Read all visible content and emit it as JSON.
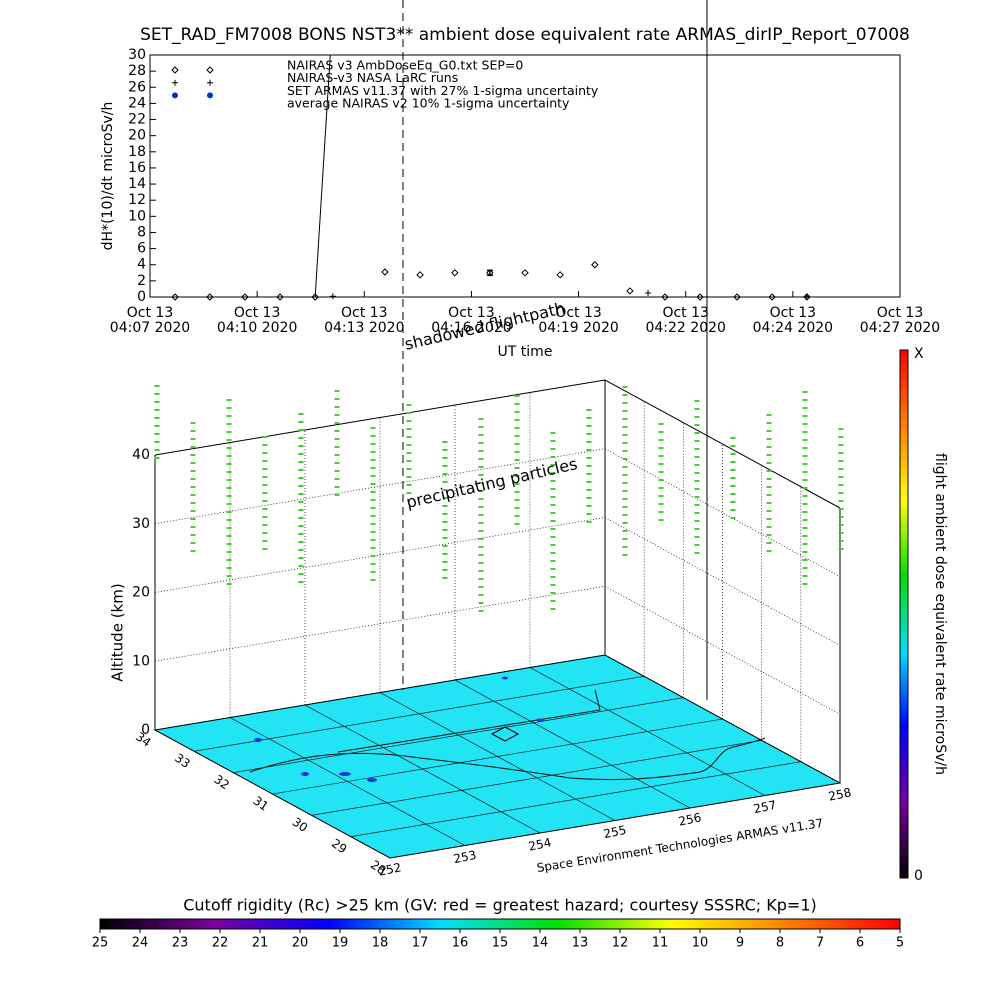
{
  "chart_data": [
    {
      "type": "scatter",
      "title": "SET_RAD_FM7008  BONS NST3** ambient dose equivalent rate ARMAS_dirIP_Report_07008",
      "y_label": "dH*(10)/dt microSv/h",
      "x_label": "UT time",
      "xlim": [
        7.55,
        27.85
      ],
      "ylim": [
        0,
        30
      ],
      "yticks": [
        0,
        2,
        4,
        6,
        8,
        10,
        12,
        14,
        16,
        18,
        20,
        22,
        24,
        26,
        28,
        30
      ],
      "xticks": [
        {
          "value": 7.55,
          "label": "Oct 13\n04:07 2020"
        },
        {
          "value": 10.45,
          "label": "Oct 13\n04:10 2020"
        },
        {
          "value": 13.35,
          "label": "Oct 13\n04:13 2020"
        },
        {
          "value": 16.25,
          "label": "Oct 13\n04:16 2020"
        },
        {
          "value": 19.15,
          "label": "Oct 13\n04:19 2020"
        },
        {
          "value": 22.05,
          "label": "Oct 13\n04:22 2020"
        },
        {
          "value": 24.95,
          "label": "Oct 13\n04:24 2020"
        },
        {
          "value": 27.85,
          "label": "Oct 13\n04:27 2020"
        }
      ],
      "series": [
        {
          "name": "NAIRAS v3 AmbDoseEq_G0.txt SEP=0",
          "marker": "diamond",
          "color": "#000000",
          "x": [
            8.23,
            9.17,
            10.12,
            11.07,
            12.02,
            13.91,
            14.86,
            15.8,
            16.75,
            17.7,
            18.65,
            19.59,
            20.54,
            21.49,
            22.44,
            23.44,
            24.39,
            25.33
          ],
          "values": [
            0,
            0,
            0,
            0,
            0,
            3.1,
            2.75,
            3,
            3,
            3,
            2.75,
            4,
            0.75,
            0,
            0,
            0,
            0,
            0
          ]
        },
        {
          "name": "NAIRAS-v3 NASA LaRC runs",
          "marker": "plus",
          "color": "#000000",
          "x": [
            12.5,
            21.03,
            25.33
          ],
          "values": [
            0.1,
            0.5,
            0.1
          ]
        },
        {
          "name": "SET ARMAS v11.37 with 27% 1-sigma uncertainty",
          "marker": "line",
          "color": "#0033cc",
          "line_color": "#000000",
          "x": [
            12.02,
            12.43
          ],
          "values": [
            0,
            30
          ]
        },
        {
          "name": "average NAIRAS v2 10% 1-sigma uncertainty",
          "marker": "errorbar",
          "color": "#000000",
          "x": [
            16.75
          ],
          "values": [
            3
          ],
          "errors": [
            0.3
          ]
        }
      ]
    },
    {
      "type": "surface-3d",
      "z_label": "Altitude (km)",
      "zlim": [
        0,
        40
      ],
      "zticks": [
        0,
        10,
        20,
        30,
        40
      ],
      "lat_lim": [
        28,
        34
      ],
      "lat_ticks": [
        28,
        29,
        30,
        31,
        32,
        33,
        34
      ],
      "lon_lim": [
        252,
        258
      ],
      "lon_ticks": [
        252,
        253,
        254,
        255,
        256,
        257,
        258
      ],
      "credit": "Space Environment Technologies ARMAS v11.37",
      "annotations": [
        "shadowed flightpath",
        "precipitating particles"
      ],
      "colorbar": {
        "label": "flight ambient dose equivalent rate microSv/h",
        "min_label": "0",
        "max_label": "X"
      }
    },
    {
      "type": "colorbar",
      "title": "Cutoff rigidity (Rc) >25 km (GV: red = greatest hazard; courtesy SSSRC; Kp=1)",
      "lim": [
        25,
        5
      ],
      "ticks": [
        25,
        24,
        23,
        22,
        21,
        20,
        19,
        18,
        17,
        16,
        15,
        14,
        13,
        12,
        11,
        10,
        9,
        8,
        7,
        6,
        5
      ],
      "colors": [
        "#000000",
        "#7a00a0",
        "#0000ff",
        "#00e0ff",
        "#00e000",
        "#ffff00",
        "#ff8000",
        "#ff0000"
      ]
    }
  ]
}
